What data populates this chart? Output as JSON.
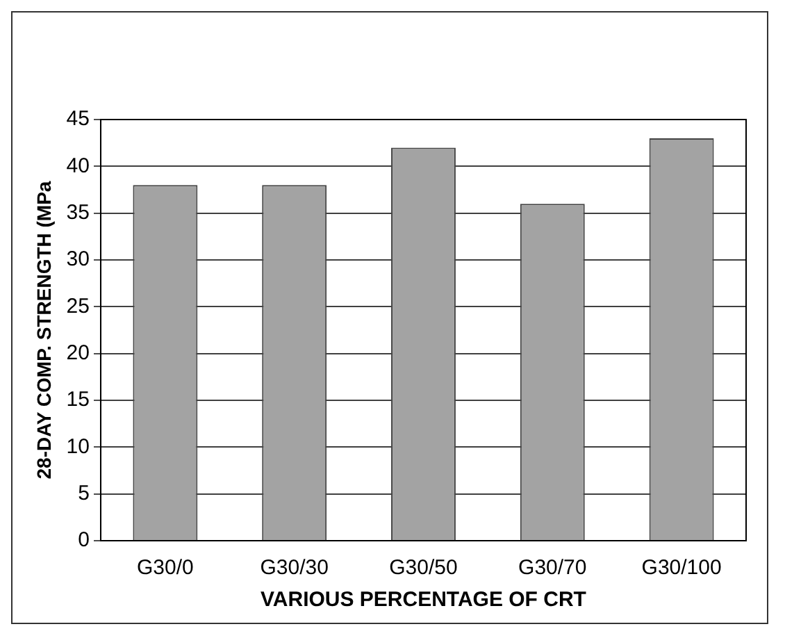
{
  "chart_data": {
    "type": "bar",
    "xlabel": "VARIOUS PERCENTAGE OF CRT",
    "ylabel": "28-DAY COMP. STRENGTH (MPa",
    "categories": [
      "G30/0",
      "G30/30",
      "G30/50",
      "G30/70",
      "G30/100"
    ],
    "values": [
      38,
      38,
      42,
      36,
      43
    ],
    "color": "#a3a3a3",
    "ylim": [
      0,
      45
    ],
    "yticks": [
      0,
      5,
      10,
      15,
      20,
      25,
      30,
      35,
      40,
      45
    ],
    "grid": "y",
    "legend": false
  }
}
